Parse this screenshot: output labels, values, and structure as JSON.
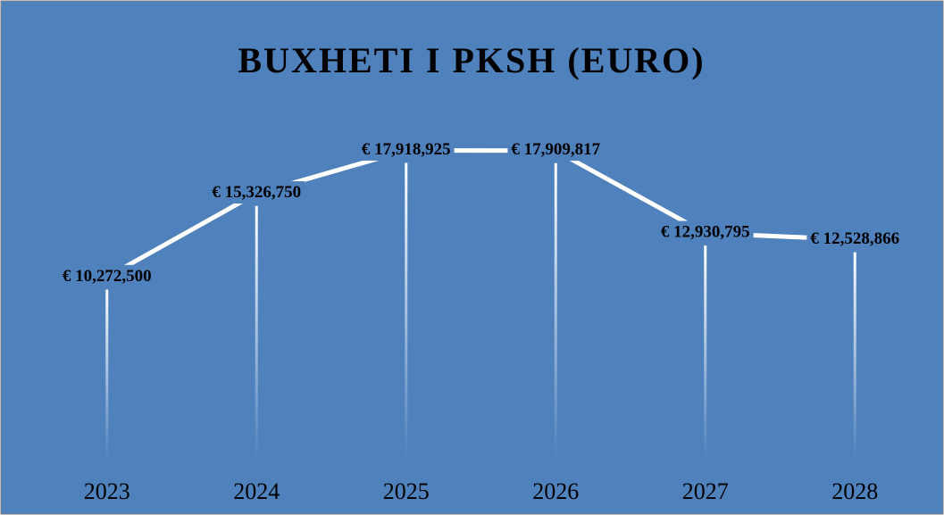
{
  "chart_data": {
    "type": "line",
    "title": "BUXHETI  I PKSH (EURO)",
    "categories": [
      "2023",
      "2024",
      "2025",
      "2026",
      "2027",
      "2028"
    ],
    "values": [
      10272500,
      15326750,
      17918925,
      17909817,
      12930795,
      12528866
    ],
    "value_labels": [
      "€ 10,272,500",
      "€ 15,326,750",
      "€ 17,918,925",
      "€ 17,909,817",
      "€ 12,930,795",
      "€ 12,528,866"
    ],
    "color": "#ffffff",
    "background": "#4f81bd",
    "ylim": [
      0,
      20000000
    ]
  }
}
